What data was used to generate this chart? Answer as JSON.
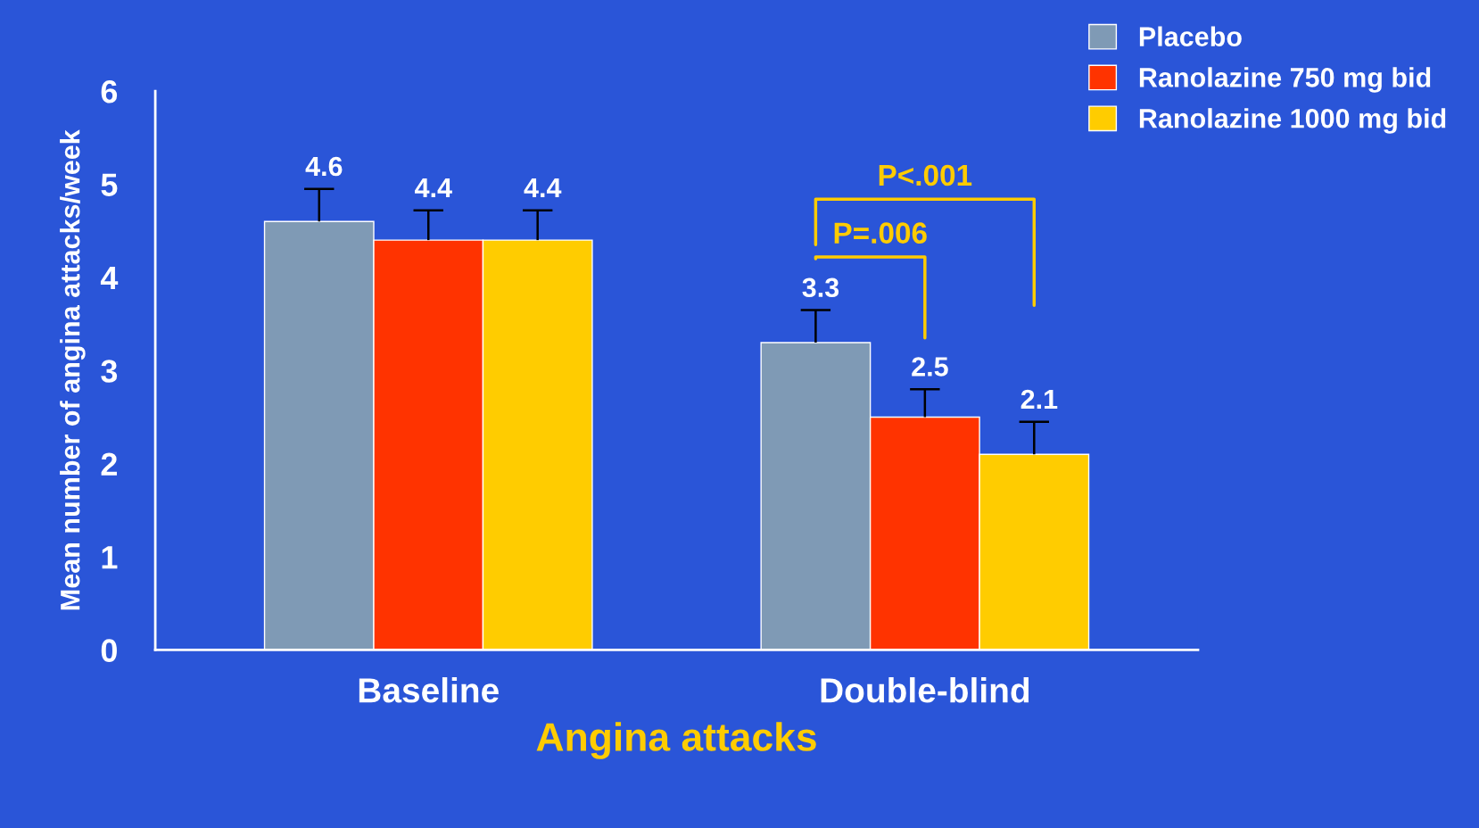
{
  "chart_data": {
    "type": "bar",
    "categories": [
      "Baseline",
      "Double-blind"
    ],
    "series": [
      {
        "name": "Placebo",
        "color": "#7f9ab5",
        "values": [
          4.6,
          3.3
        ],
        "errors": [
          [
            4.6,
            4.95
          ],
          [
            3.3,
            3.65
          ]
        ]
      },
      {
        "name": "Ranolazine 750 mg bid",
        "color": "#ff3300",
        "values": [
          4.4,
          2.5
        ],
        "errors": [
          [
            4.4,
            4.72
          ],
          [
            2.5,
            2.8
          ]
        ]
      },
      {
        "name": "Ranolazine 1000 mg bid",
        "color": "#ffcc00",
        "values": [
          4.4,
          2.1
        ],
        "errors": [
          [
            4.4,
            4.72
          ],
          [
            2.1,
            2.45
          ]
        ]
      }
    ],
    "xlabel": "Angina attacks",
    "ylabel": "Mean number of angina attacks/week",
    "ylim": [
      0,
      6
    ],
    "yticks": [
      0,
      1,
      2,
      3,
      4,
      5,
      6
    ],
    "data_labels": true,
    "grid": false,
    "legend": "top right",
    "annotations": [
      "P=.006",
      "P<.001"
    ]
  }
}
